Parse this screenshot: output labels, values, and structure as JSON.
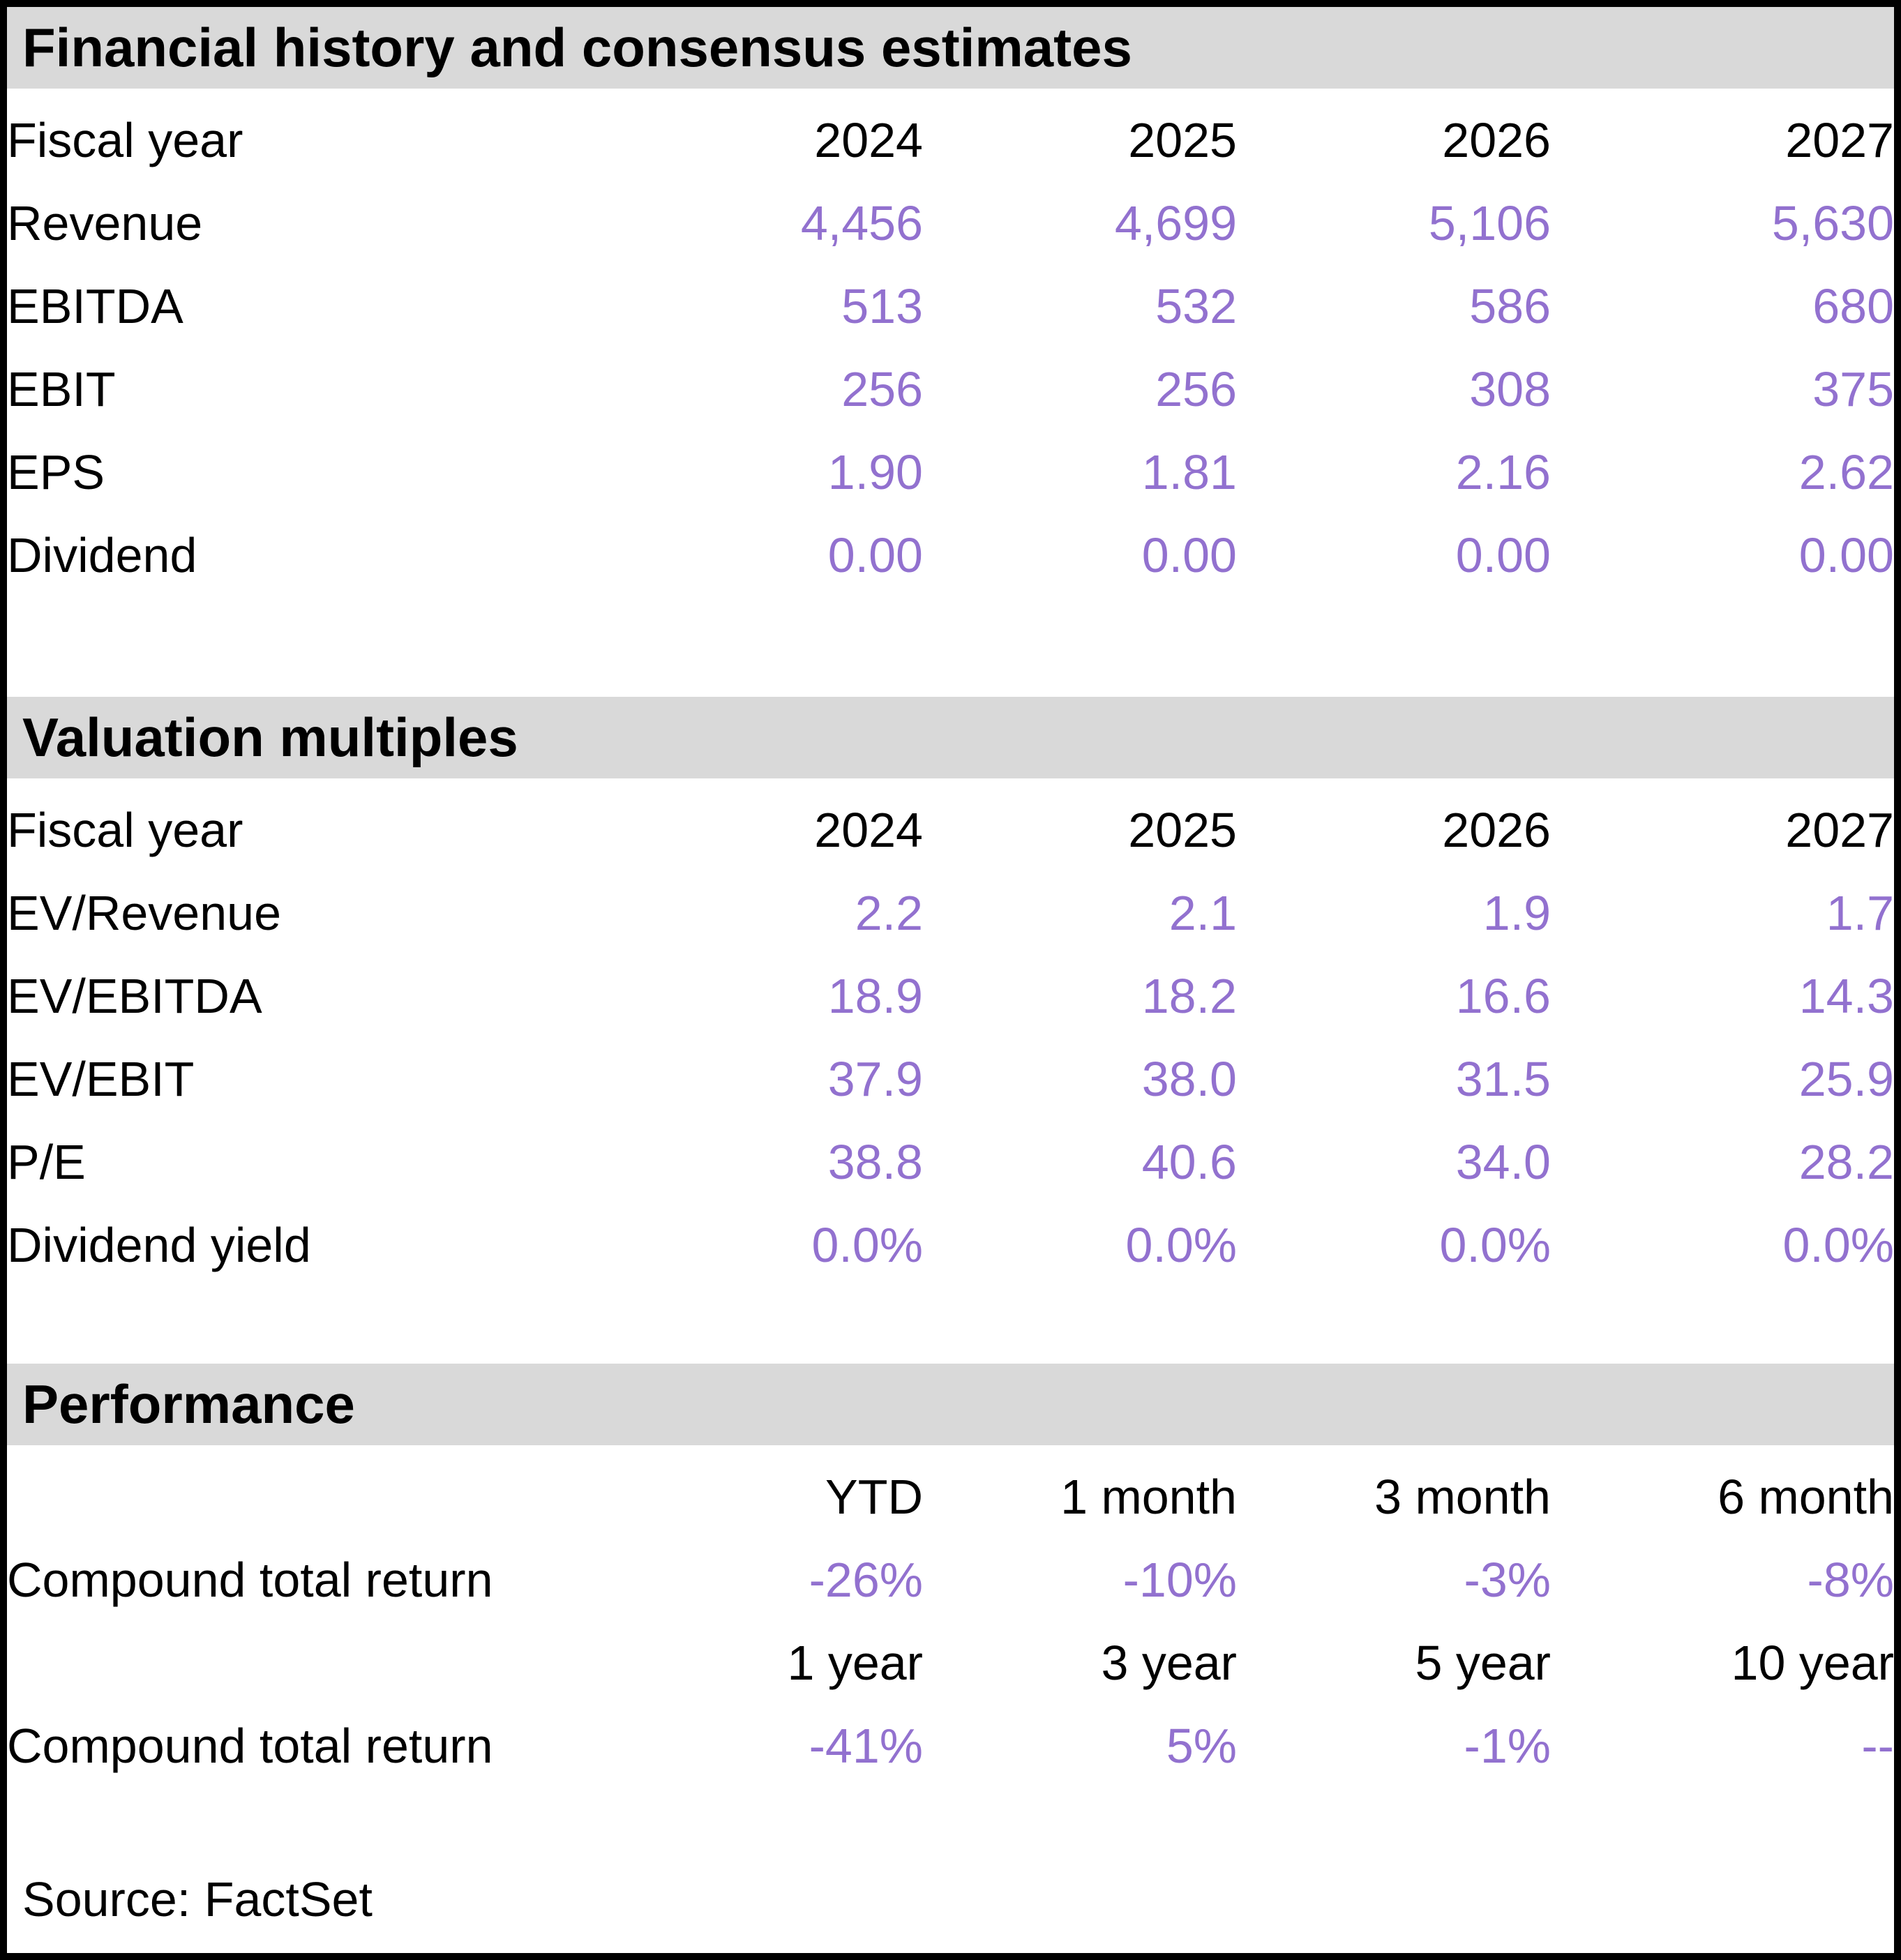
{
  "colors": {
    "accent": "#9271cf",
    "header_bg": "#d9d9d9",
    "text": "#000000",
    "border": "#000000"
  },
  "sections": [
    {
      "title": "Financial history and consensus estimates",
      "header_row": {
        "label": "Fiscal year",
        "cells": [
          "2024",
          "2025",
          "2026",
          "2027"
        ]
      },
      "rows": [
        {
          "label": "Revenue",
          "cells": [
            "4,456",
            "4,699",
            "5,106",
            "5,630"
          ]
        },
        {
          "label": "EBITDA",
          "cells": [
            "513",
            "532",
            "586",
            "680"
          ]
        },
        {
          "label": "EBIT",
          "cells": [
            "256",
            "256",
            "308",
            "375"
          ]
        },
        {
          "label": "EPS",
          "cells": [
            "1.90",
            "1.81",
            "2.16",
            "2.62"
          ]
        },
        {
          "label": "Dividend",
          "cells": [
            "0.00",
            "0.00",
            "0.00",
            "0.00"
          ]
        }
      ]
    },
    {
      "title": "Valuation multiples",
      "header_row": {
        "label": "Fiscal year",
        "cells": [
          "2024",
          "2025",
          "2026",
          "2027"
        ]
      },
      "rows": [
        {
          "label": "EV/Revenue",
          "cells": [
            "2.2",
            "2.1",
            "1.9",
            "1.7"
          ]
        },
        {
          "label": "EV/EBITDA",
          "cells": [
            "18.9",
            "18.2",
            "16.6",
            "14.3"
          ]
        },
        {
          "label": "EV/EBIT",
          "cells": [
            "37.9",
            "38.0",
            "31.5",
            "25.9"
          ]
        },
        {
          "label": "P/E",
          "cells": [
            "38.8",
            "40.6",
            "34.0",
            "28.2"
          ]
        },
        {
          "label": "Dividend yield",
          "cells": [
            "0.0%",
            "0.0%",
            "0.0%",
            "0.0%"
          ]
        }
      ]
    },
    {
      "title": "Performance",
      "groups": [
        {
          "header": {
            "label": "",
            "cells": [
              "YTD",
              "1 month",
              "3 month",
              "6 month"
            ]
          },
          "row": {
            "label": "Compound total return",
            "cells": [
              "-26%",
              "-10%",
              "-3%",
              "-8%"
            ]
          }
        },
        {
          "header": {
            "label": "",
            "cells": [
              "1 year",
              "3 year",
              "5 year",
              "10 year"
            ]
          },
          "row": {
            "label": "Compound total return",
            "cells": [
              "-41%",
              "5%",
              "-1%",
              "--"
            ]
          }
        }
      ]
    }
  ],
  "source": "Source: FactSet"
}
